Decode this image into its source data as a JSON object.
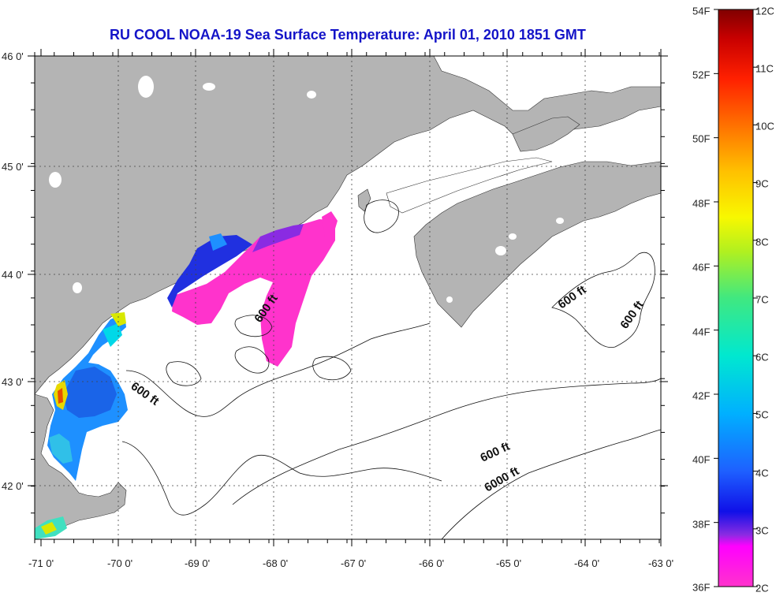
{
  "title": "RU COOL  NOAA-19  Sea Surface Temperature:  April 01, 2010 1851 GMT",
  "colors": {
    "land": "#b4b4b4",
    "title": "#1414c8",
    "warm_pink": "#ff33cc",
    "cold_blue": "#2020e0"
  },
  "lat_labels": [
    "46 0'",
    "45 0'",
    "44 0'",
    "43 0'",
    "42 0'"
  ],
  "lon_labels": [
    "-71 0'",
    "-70 0'",
    "-69 0'",
    "-68 0'",
    "-67 0'",
    "-66 0'",
    "-65 0'",
    "-64 0'",
    "-63 0'"
  ],
  "contour_labels": [
    "600 ft",
    "600 ft",
    "600 ft",
    "600 ft",
    "600 ft",
    "6000 ft"
  ],
  "colorbar": {
    "left_labels": [
      "54F",
      "52F",
      "50F",
      "48F",
      "46F",
      "44F",
      "42F",
      "40F",
      "38F",
      "36F"
    ],
    "right_labels": [
      "12C",
      "11C",
      "10C",
      "9C",
      "8C",
      "7C",
      "6C",
      "5C",
      "4C",
      "3C",
      "2C"
    ]
  }
}
